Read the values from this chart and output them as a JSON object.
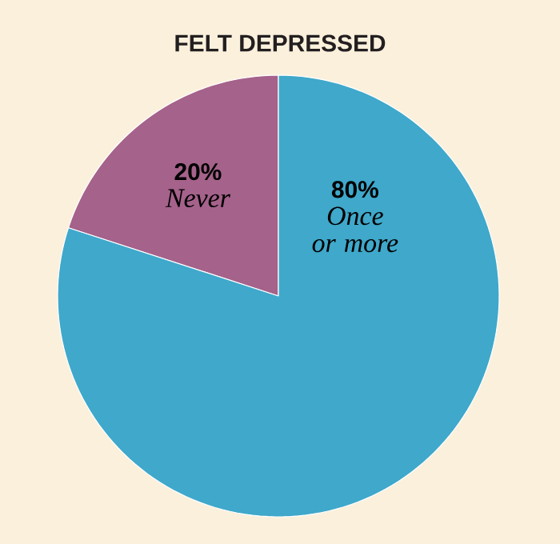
{
  "chart_data": {
    "type": "pie",
    "title": "FELT DEPRESSED",
    "categories": [
      "Never",
      "Once or more"
    ],
    "values": [
      20,
      80
    ],
    "value_labels": [
      "20%",
      "80%"
    ],
    "colors": [
      "#a5628b",
      "#3fa8cb"
    ]
  }
}
